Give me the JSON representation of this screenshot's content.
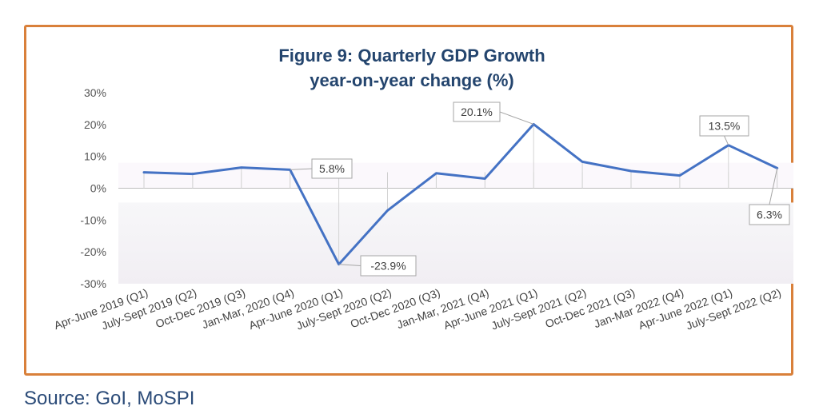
{
  "title_line1": "Figure 9: Quarterly GDP Growth",
  "title_line2": "year-on-year change (%)",
  "source": "Source: GoI, MoSPI",
  "colors": {
    "line": "#4472c4",
    "frame": "#d9803a",
    "title": "#24456e"
  },
  "chart_data": {
    "type": "line",
    "title": "Figure 9: Quarterly GDP Growth year-on-year change (%)",
    "xlabel": "",
    "ylabel": "",
    "ylim": [
      -30,
      30
    ],
    "yticks": [
      30,
      20,
      10,
      0,
      -10,
      -20,
      -30
    ],
    "ytick_labels": [
      "30%",
      "20%",
      "10%",
      "0%",
      "-10%",
      "-20%",
      "-30%"
    ],
    "grid": false,
    "legend": "none",
    "categories": [
      "Apr-June 2019 (Q1)",
      "July-Sept 2019 (Q2)",
      "Oct-Dec 2019 (Q3)",
      "Jan-Mar, 2020 (Q4)",
      "Apr-June 2020 (Q1)",
      "July-Sept 2020 (Q2)",
      "Oct-Dec 2020 (Q3)",
      "Jan-Mar, 2021 (Q4)",
      "Apr-June 2021 (Q1)",
      "July-Sept 2021 (Q2)",
      "Oct-Dec 2021 (Q3)",
      "Jan-Mar 2022 (Q4)",
      "Apr-June 2022 (Q1)",
      "July-Sept 2022 (Q2)"
    ],
    "series": [
      {
        "values": [
          5.0,
          4.5,
          6.5,
          5.8,
          -23.9,
          -7.0,
          4.7,
          3.0,
          20.1,
          8.3,
          5.4,
          4.0,
          13.5,
          6.3
        ]
      }
    ],
    "annotations": [
      {
        "index": 3,
        "text": "5.8%"
      },
      {
        "index": 4,
        "text": "-23.9%"
      },
      {
        "index": 8,
        "text": "20.1%"
      },
      {
        "index": 12,
        "text": "13.5%"
      },
      {
        "index": 13,
        "text": "6.3%"
      }
    ]
  }
}
